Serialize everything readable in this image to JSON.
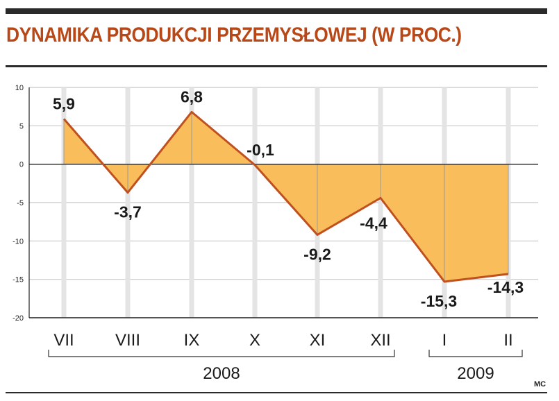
{
  "title": "DYNAMIKA PRODUKCJI PRZEMYSŁOWEJ (W PROC.)",
  "credit": "MC",
  "chart_data": {
    "type": "area",
    "categories": [
      "VII",
      "VIII",
      "IX",
      "X",
      "XI",
      "XII",
      "I",
      "II"
    ],
    "values": [
      5.9,
      -3.7,
      6.8,
      -0.1,
      -9.2,
      -4.4,
      -15.3,
      -14.3
    ],
    "data_labels": [
      "5,9",
      "-3,7",
      "6,8",
      "-0,1",
      "-9,2",
      "-4,4",
      "-15,3",
      "-14,3"
    ],
    "ylim": [
      -20,
      10
    ],
    "yticks": [
      10,
      5,
      0,
      -5,
      -10,
      -15,
      -20
    ],
    "year_groups": [
      {
        "label": "2008",
        "from": 0,
        "to": 5
      },
      {
        "label": "2009",
        "from": 6,
        "to": 7
      }
    ],
    "grid": true,
    "colors": {
      "fill": "#f9bd5c",
      "line": "#c0501e",
      "grid": "#c8c8c8",
      "axis": "#222222"
    }
  }
}
